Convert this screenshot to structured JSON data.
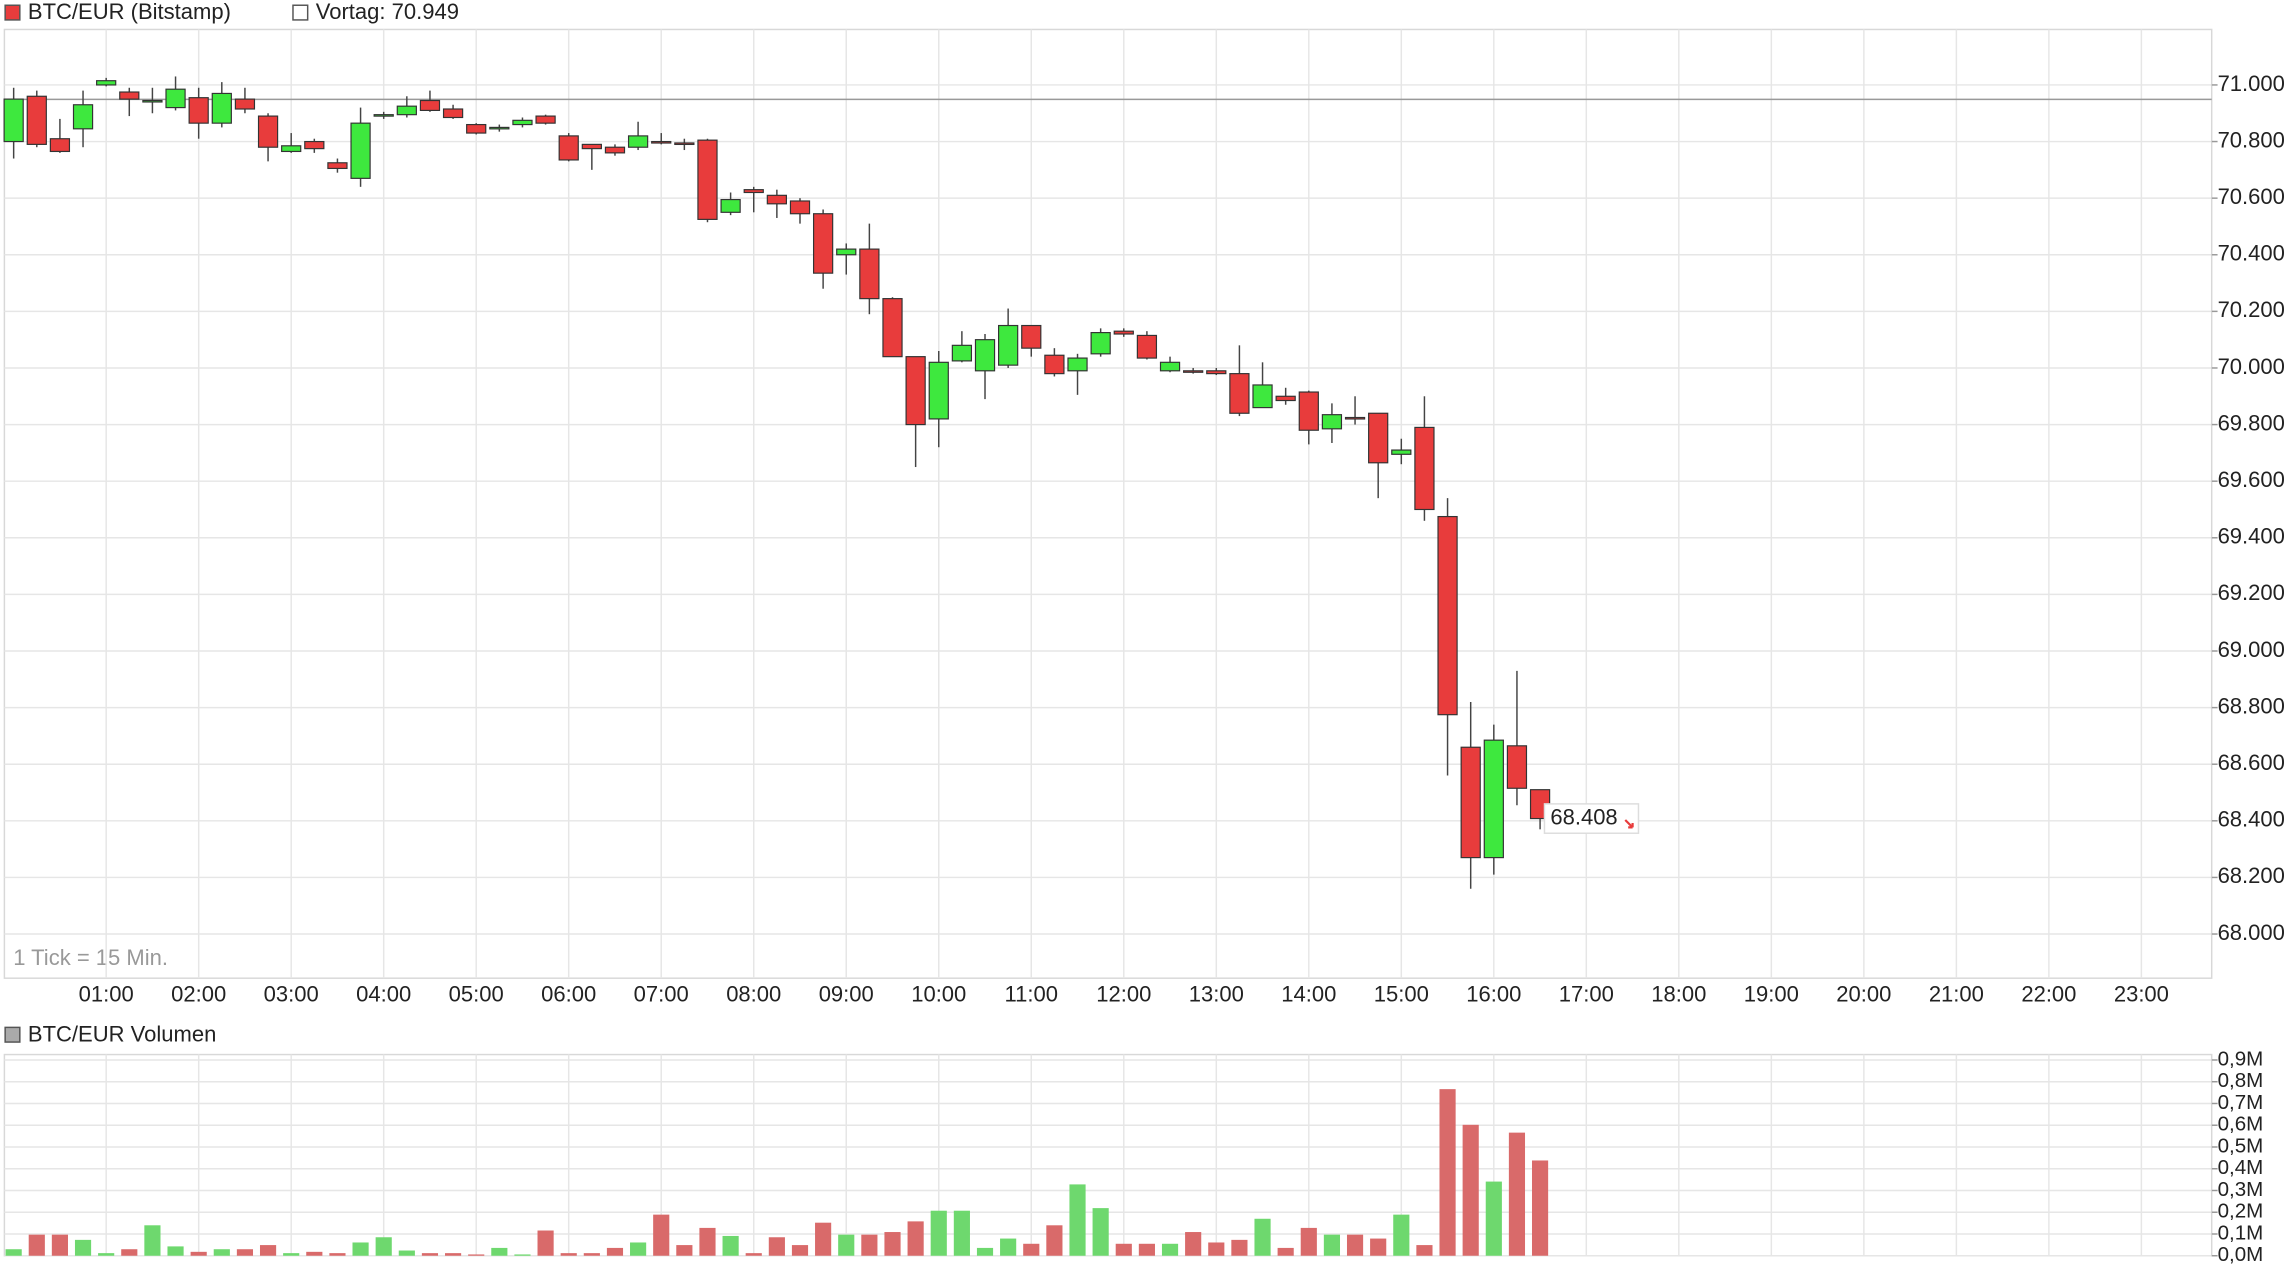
{
  "chart_data": [
    {
      "type": "candlestick",
      "title": "BTC/EUR (Bitstamp)",
      "previous_close": {
        "value": 70949,
        "label": "Vortag: 70.949"
      },
      "last_price": {
        "value": 68408,
        "label": "68.408"
      },
      "note": "1 Tick = 15 Min.",
      "up_color": "#3ee83e",
      "down_color": "#e83c3c",
      "x": [
        0,
        0.25,
        0.5,
        0.75,
        1,
        1.25,
        1.5,
        1.75,
        2,
        2.25,
        2.5,
        2.75,
        3,
        3.25,
        3.5,
        3.75,
        4,
        4.25,
        4.5,
        4.75,
        5,
        5.25,
        5.5,
        5.75,
        6,
        6.25,
        6.5,
        6.75,
        7,
        7.25,
        7.5,
        7.75,
        8,
        8.25,
        8.5,
        8.75,
        9,
        9.25,
        9.5,
        9.75,
        10,
        10.25,
        10.5,
        10.75,
        11,
        11.25,
        11.5,
        11.75,
        12,
        12.25,
        12.5,
        12.75,
        13,
        13.25,
        13.5,
        13.75,
        14,
        14.25,
        14.5,
        14.75,
        15,
        15.25,
        15.5,
        15.75,
        16,
        16.25,
        16.5
      ],
      "open": [
        70800,
        70960,
        70810,
        70845,
        71000,
        70975,
        70940,
        70920,
        70955,
        70865,
        70950,
        70890,
        70765,
        70800,
        70725,
        70670,
        70890,
        70895,
        70945,
        70915,
        70860,
        70845,
        70860,
        70890,
        70820,
        70790,
        70780,
        70780,
        70800,
        70795,
        70805,
        70550,
        70630,
        70610,
        70590,
        70545,
        70400,
        70420,
        70245,
        70040,
        69820,
        70025,
        69990,
        70010,
        70150,
        70045,
        69990,
        70050,
        70130,
        70115,
        69990,
        69990,
        69990,
        69980,
        69860,
        69900,
        69915,
        69785,
        69825,
        69840,
        69695,
        69790,
        69475,
        68660,
        68270,
        68665,
        68510
      ],
      "high": [
        70990,
        70980,
        70880,
        70980,
        71025,
        70990,
        70990,
        71030,
        70990,
        71010,
        70990,
        70900,
        70830,
        70810,
        70740,
        70920,
        70905,
        70960,
        70980,
        70930,
        70865,
        70860,
        70885,
        70895,
        70830,
        70790,
        70790,
        70870,
        70830,
        70810,
        70810,
        70620,
        70640,
        70630,
        70600,
        70560,
        70440,
        70510,
        70250,
        70040,
        70060,
        70130,
        70120,
        70210,
        70150,
        70070,
        70050,
        70140,
        70140,
        70130,
        70040,
        70000,
        70000,
        70080,
        70020,
        69930,
        69920,
        69875,
        69900,
        69840,
        69750,
        69900,
        69540,
        68820,
        68740,
        68930,
        68510
      ],
      "low": [
        70740,
        70780,
        70760,
        70780,
        70995,
        70890,
        70900,
        70910,
        70810,
        70850,
        70900,
        70730,
        70760,
        70760,
        70690,
        70640,
        70880,
        70885,
        70905,
        70880,
        70825,
        70835,
        70850,
        70860,
        70730,
        70700,
        70750,
        70770,
        70790,
        70770,
        70515,
        70540,
        70550,
        70530,
        70510,
        70280,
        70330,
        70190,
        70040,
        69650,
        69720,
        70020,
        69890,
        70000,
        70040,
        69970,
        69905,
        70040,
        70110,
        70030,
        69985,
        69980,
        69975,
        69830,
        69860,
        69870,
        69730,
        69735,
        69800,
        69540,
        69660,
        69460,
        68560,
        68160,
        68210,
        68455,
        68370
      ],
      "close": [
        70950,
        70790,
        70765,
        70930,
        71015,
        70950,
        70945,
        70985,
        70865,
        70970,
        70915,
        70780,
        70785,
        70775,
        70705,
        70865,
        70895,
        70925,
        70910,
        70885,
        70830,
        70850,
        70875,
        70865,
        70735,
        70775,
        70760,
        70820,
        70795,
        70790,
        70525,
        70595,
        70620,
        70580,
        70545,
        70335,
        70420,
        70245,
        70040,
        69800,
        70020,
        70080,
        70100,
        70150,
        70070,
        69980,
        70035,
        70125,
        70120,
        70035,
        70020,
        69985,
        69980,
        69840,
        69940,
        69885,
        69780,
        69835,
        69820,
        69665,
        69710,
        69500,
        68775,
        68270,
        68685,
        68515,
        68408
      ],
      "xlim": [
        -0.1,
        23.76
      ],
      "xticks": [
        {
          "value": 1,
          "label": "01:00"
        },
        {
          "value": 2,
          "label": "02:00"
        },
        {
          "value": 3,
          "label": "03:00"
        },
        {
          "value": 4,
          "label": "04:00"
        },
        {
          "value": 5,
          "label": "05:00"
        },
        {
          "value": 6,
          "label": "06:00"
        },
        {
          "value": 7,
          "label": "07:00"
        },
        {
          "value": 8,
          "label": "08:00"
        },
        {
          "value": 9,
          "label": "09:00"
        },
        {
          "value": 10,
          "label": "10:00"
        },
        {
          "value": 11,
          "label": "11:00"
        },
        {
          "value": 12,
          "label": "12:00"
        },
        {
          "value": 13,
          "label": "13:00"
        },
        {
          "value": 14,
          "label": "14:00"
        },
        {
          "value": 15,
          "label": "15:00"
        },
        {
          "value": 16,
          "label": "16:00"
        },
        {
          "value": 17,
          "label": "17:00"
        },
        {
          "value": 18,
          "label": "18:00"
        },
        {
          "value": 19,
          "label": "19:00"
        },
        {
          "value": 20,
          "label": "20:00"
        },
        {
          "value": 21,
          "label": "21:00"
        },
        {
          "value": 22,
          "label": "22:00"
        },
        {
          "value": 23,
          "label": "23:00"
        }
      ],
      "ylim": [
        67844,
        71196
      ],
      "yticks": [
        {
          "value": 68000,
          "label": "68.000"
        },
        {
          "value": 68200,
          "label": "68.200"
        },
        {
          "value": 68400,
          "label": "68.400"
        },
        {
          "value": 68600,
          "label": "68.600"
        },
        {
          "value": 68800,
          "label": "68.800"
        },
        {
          "value": 69000,
          "label": "69.000"
        },
        {
          "value": 69200,
          "label": "69.200"
        },
        {
          "value": 69400,
          "label": "69.400"
        },
        {
          "value": 69600,
          "label": "69.600"
        },
        {
          "value": 69800,
          "label": "69.800"
        },
        {
          "value": 70000,
          "label": "70.000"
        },
        {
          "value": 70200,
          "label": "70.200"
        },
        {
          "value": 70400,
          "label": "70.400"
        },
        {
          "value": 70600,
          "label": "70.600"
        },
        {
          "value": 70800,
          "label": "70.800"
        },
        {
          "value": 71000,
          "label": "71.000"
        }
      ],
      "grid": true
    },
    {
      "type": "volume",
      "title": "BTC/EUR Volumen",
      "up_color": "#6ed86e",
      "down_color": "#d96a6a",
      "values": [
        30000,
        97000,
        97000,
        73000,
        12000,
        30000,
        140000,
        43000,
        18000,
        30000,
        30000,
        49000,
        12000,
        18000,
        12000,
        61000,
        85000,
        24000,
        12000,
        12000,
        6000,
        36000,
        6000,
        116000,
        12000,
        12000,
        36000,
        61000,
        189000,
        49000,
        128000,
        91000,
        12000,
        85000,
        49000,
        152000,
        97000,
        97000,
        109000,
        158000,
        207000,
        207000,
        36000,
        79000,
        55000,
        140000,
        328000,
        219000,
        55000,
        55000,
        55000,
        109000,
        61000,
        73000,
        170000,
        36000,
        128000,
        97000,
        97000,
        79000,
        189000,
        49000,
        766000,
        602000,
        341000,
        566000,
        438000
      ],
      "ylim": [
        0,
        925000
      ],
      "yticks": [
        {
          "value": 0,
          "label": "0,0M"
        },
        {
          "value": 100000,
          "label": "0,1M"
        },
        {
          "value": 200000,
          "label": "0,2M"
        },
        {
          "value": 300000,
          "label": "0,3M"
        },
        {
          "value": 400000,
          "label": "0,4M"
        },
        {
          "value": 500000,
          "label": "0,5M"
        },
        {
          "value": 600000,
          "label": "0,6M"
        },
        {
          "value": 700000,
          "label": "0,7M"
        },
        {
          "value": 800000,
          "label": "0,8M"
        },
        {
          "value": 900000,
          "label": "0,9M"
        }
      ],
      "grid": true
    }
  ]
}
